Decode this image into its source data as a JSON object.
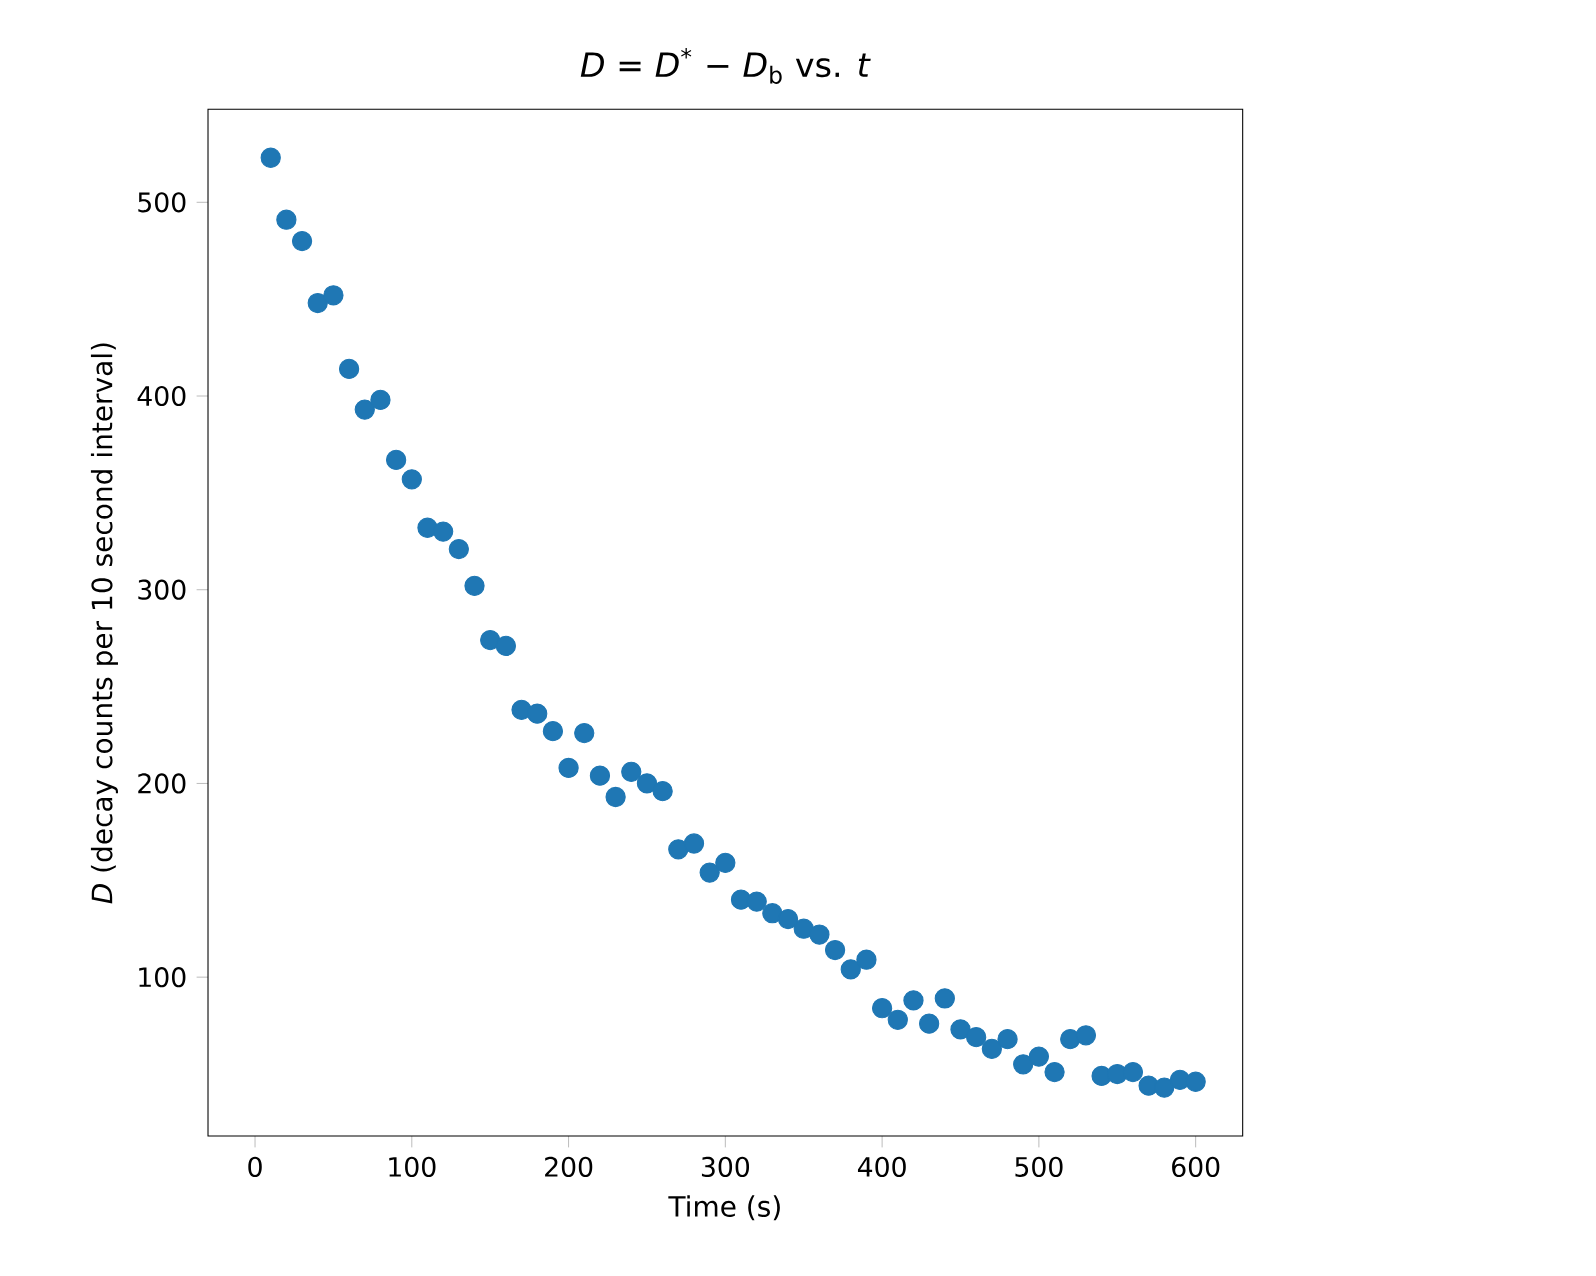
{
  "chart_data": {
    "type": "scatter",
    "title": "*D* = *D*$^{*}$ − *D*$_{b}$ vs. *t*",
    "xlabel": "Time (s)",
    "ylabel": "*D* (decay counts per 10 second interval)",
    "xlim": [
      -30,
      630
    ],
    "ylim": [
      18,
      548
    ],
    "xticks": [
      0,
      100,
      200,
      300,
      400,
      500,
      600
    ],
    "yticks": [
      100,
      200,
      300,
      400,
      500
    ],
    "marker": "circle",
    "grid": false,
    "series": [
      {
        "color": "#1f77b4",
        "x": [
          10,
          20,
          30,
          40,
          50,
          60,
          70,
          80,
          90,
          100,
          110,
          120,
          130,
          140,
          150,
          160,
          170,
          180,
          190,
          200,
          210,
          220,
          230,
          240,
          250,
          260,
          270,
          280,
          290,
          300,
          310,
          320,
          330,
          340,
          350,
          360,
          370,
          380,
          390,
          400,
          410,
          420,
          430,
          440,
          450,
          460,
          470,
          480,
          490,
          500,
          510,
          520,
          530,
          540,
          550,
          560,
          570,
          580,
          590,
          600
        ],
        "values": [
          523,
          491,
          480,
          448,
          452,
          414,
          393,
          398,
          367,
          357,
          332,
          330,
          321,
          302,
          274,
          271,
          238,
          236,
          227,
          208,
          226,
          204,
          193,
          206,
          200,
          196,
          166,
          169,
          154,
          159,
          140,
          139,
          133,
          130,
          125,
          122,
          114,
          104,
          109,
          84,
          78,
          88,
          76,
          89,
          73,
          69,
          63,
          68,
          55,
          59,
          51,
          68,
          70,
          49,
          50,
          51,
          44,
          43,
          47,
          46
        ]
      }
    ]
  }
}
